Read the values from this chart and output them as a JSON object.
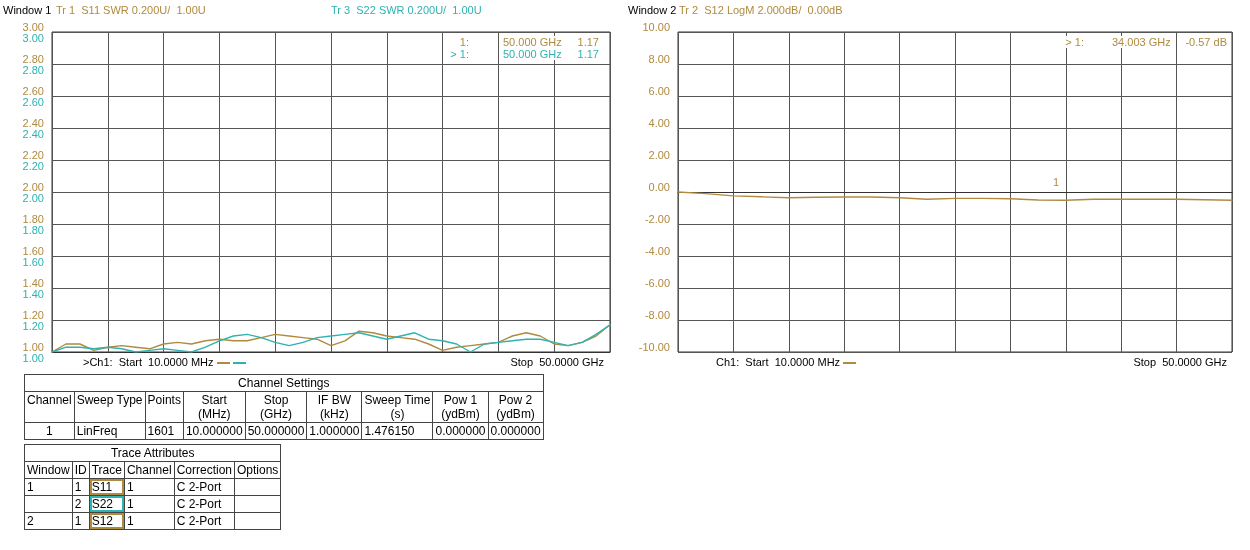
{
  "chart_data": [
    {
      "type": "line",
      "categories": [
        null,
        null,
        null,
        null,
        null,
        null,
        null,
        null,
        null,
        null,
        null,
        null,
        null,
        null,
        null,
        null,
        null,
        null,
        null,
        null,
        null,
        null,
        null,
        null,
        null,
        null,
        null,
        null,
        null,
        null,
        null,
        null,
        null,
        null,
        null,
        null,
        null,
        null,
        null,
        null,
        null
      ],
      "series": [
        {
          "name": "Tr 1  S11 SWR 0.200U/  1.00U",
          "color": "#b08a3e",
          "values": [
            1.0,
            1.05,
            1.05,
            1.01,
            1.03,
            1.04,
            1.03,
            1.02,
            1.05,
            1.06,
            1.05,
            1.07,
            1.08,
            1.07,
            1.07,
            1.09,
            1.11,
            1.1,
            1.09,
            1.08,
            1.04,
            1.07,
            1.13,
            1.12,
            1.1,
            1.09,
            1.08,
            1.05,
            1.01,
            1.03,
            1.04,
            1.05,
            1.06,
            1.1,
            1.12,
            1.1,
            1.05,
            1.04,
            1.06,
            1.1,
            1.17
          ]
        },
        {
          "name": "Tr 3  S22 SWR 0.200U/  1.00U",
          "color": "#2fb2b2",
          "axis": "y2",
          "values": [
            1.0,
            1.03,
            1.03,
            1.02,
            1.03,
            1.02,
            1.0,
            1.01,
            1.02,
            1.01,
            1.0,
            1.03,
            1.07,
            1.1,
            1.11,
            1.09,
            1.06,
            1.04,
            1.06,
            1.09,
            1.1,
            1.11,
            1.12,
            1.1,
            1.08,
            1.1,
            1.12,
            1.08,
            1.07,
            1.05,
            1.0,
            1.05,
            1.06,
            1.07,
            1.08,
            1.08,
            1.06,
            1.04,
            1.06,
            1.11,
            1.17
          ]
        }
      ],
      "ylim": [
        1,
        3
      ],
      "yticks": [
        {
          "value": 1,
          "label": "1.00"
        },
        {
          "value": 1.2,
          "label": "1.20"
        },
        {
          "value": 1.4,
          "label": "1.40"
        },
        {
          "value": 1.6,
          "label": "1.60"
        },
        {
          "value": 1.8,
          "label": "1.80"
        },
        {
          "value": 2,
          "label": "2.00"
        },
        {
          "value": 2.2,
          "label": "2.20"
        },
        {
          "value": 2.4,
          "label": "2.40"
        },
        {
          "value": 2.6,
          "label": "2.60"
        },
        {
          "value": 2.8,
          "label": "2.80"
        },
        {
          "value": 3,
          "label": "3.00"
        }
      ],
      "y2lim": [
        1,
        3
      ],
      "y2ticks": [
        {
          "value": 1,
          "label": "1.00"
        },
        {
          "value": 1.2,
          "label": "1.20"
        },
        {
          "value": 1.4,
          "label": "1.40"
        },
        {
          "value": 1.6,
          "label": "1.60"
        },
        {
          "value": 1.8,
          "label": "1.80"
        },
        {
          "value": 2,
          "label": "2.00"
        },
        {
          "value": 2.2,
          "label": "2.20"
        },
        {
          "value": 2.4,
          "label": "2.40"
        },
        {
          "value": 2.6,
          "label": "2.60"
        },
        {
          "value": 2.8,
          "label": "2.80"
        },
        {
          "value": 3,
          "label": "3.00"
        }
      ],
      "tick_labels": "y",
      "grid": true,
      "marker": "none",
      "line_style": "solid",
      "annotations": [
        "Window 1",
        "1:",
        "50.000 GHz",
        "1.17",
        "> 1:",
        "50.000 GHz",
        "1.17",
        ">Ch1:  Start  10.0000 MHz",
        "Stop  50.0000 GHz"
      ]
    },
    {
      "type": "line",
      "categories": [
        null,
        null,
        null,
        null,
        null,
        null,
        null,
        null,
        null,
        null,
        null,
        null,
        null,
        null,
        null,
        null,
        null,
        null,
        null,
        null,
        null
      ],
      "series": [
        {
          "name": "Tr 2  S12 LogM 2.000dB/  0.00dB",
          "color": "#b08a3e",
          "values": [
            0.0,
            -0.1,
            -0.24,
            -0.3,
            -0.36,
            -0.33,
            -0.31,
            -0.31,
            -0.36,
            -0.45,
            -0.4,
            -0.4,
            -0.42,
            -0.5,
            -0.52,
            -0.45,
            -0.45,
            -0.45,
            -0.45,
            -0.48,
            -0.52
          ]
        }
      ],
      "ylim": [
        -10,
        10
      ],
      "yticks": [
        {
          "value": -10,
          "label": "-10.00"
        },
        {
          "value": -8,
          "label": "-8.00"
        },
        {
          "value": -6,
          "label": "-6.00"
        },
        {
          "value": -4,
          "label": "-4.00"
        },
        {
          "value": -2,
          "label": "-2.00"
        },
        {
          "value": 0,
          "label": "0.00"
        },
        {
          "value": 2,
          "label": "2.00"
        },
        {
          "value": 4,
          "label": "4.00"
        },
        {
          "value": 6,
          "label": "6.00"
        },
        {
          "value": 8,
          "label": "8.00"
        },
        {
          "value": 10,
          "label": "10.00"
        }
      ],
      "tick_labels": "y",
      "grid": true,
      "marker": "none",
      "line_style": "solid",
      "annotations": [
        "Window 2",
        "> 1:",
        "34.003 GHz",
        "-0.57 dB",
        "1",
        "Ch1:  Start  10.0000 MHz",
        "Stop  50.0000 GHz"
      ]
    },
    {
      "type": "other",
      "annotations": [
        "Channel Settings",
        "Channel",
        "Sweep Type",
        "Points",
        "Start\n(MHz)",
        "Stop\n(GHz)",
        "IF BW\n(kHz)",
        "Sweep Time\n(s)",
        "Pow 1\n(ydBm)",
        "Pow 2\n(ydBm)",
        "1",
        "LinFreq",
        "1601",
        "10.000000",
        "50.000000",
        "1.000000",
        "1.476150",
        "0.000000",
        "0.000000",
        "Trace Attributes",
        "Window",
        "ID",
        "Trace",
        "Channel",
        "Correction",
        "Options",
        "1",
        "1",
        "S11",
        "1",
        "C 2-Port",
        "2",
        "S22",
        "1",
        "C 2-Port",
        "2",
        "1",
        "S12",
        "1",
        "C 2-Port"
      ]
    }
  ]
}
